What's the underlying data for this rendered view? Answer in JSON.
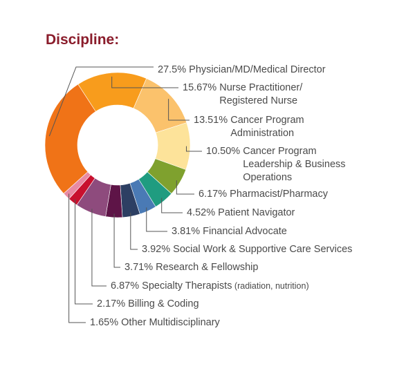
{
  "chart_data": {
    "type": "pie",
    "variant": "donut",
    "title": "Discipline:",
    "title_color": "#8a1c2b",
    "slices": [
      {
        "label": "Physician/MD/Medical Director",
        "percent_text": "27.5%",
        "value": 27.5,
        "color": "#f07317"
      },
      {
        "label": "Nurse Practitioner/\nRegistered Nurse",
        "percent_text": "15.67%",
        "value": 15.67,
        "color": "#f89c1c"
      },
      {
        "label": "Cancer Program\nAdministration",
        "percent_text": "13.51%",
        "value": 13.51,
        "color": "#fbc26c"
      },
      {
        "label": "Cancer Program\nLeadership & Business\nOperations",
        "percent_text": "10.50%",
        "value": 10.5,
        "color": "#fde39a"
      },
      {
        "label": "Pharmacist/Pharmacy",
        "percent_text": "6.17%",
        "value": 6.17,
        "color": "#7fa12e"
      },
      {
        "label": "Patient Navigator",
        "percent_text": "4.52%",
        "value": 4.52,
        "color": "#1f9c80"
      },
      {
        "label": "Financial Advocate",
        "percent_text": "3.81%",
        "value": 3.81,
        "color": "#4a7ab5"
      },
      {
        "label": "Social Work & Supportive Care Services",
        "percent_text": "3.92%",
        "value": 3.92,
        "color": "#2d3f63"
      },
      {
        "label": "Research & Fellowship",
        "percent_text": "3.71%",
        "value": 3.71,
        "color": "#5e1447"
      },
      {
        "label": "Specialty Therapists",
        "label_suffix": "(radiation, nutrition)",
        "percent_text": "6.87%",
        "value": 6.87,
        "color": "#8e4b7d"
      },
      {
        "label": "Billing & Coding",
        "percent_text": "2.17%",
        "value": 2.17,
        "color": "#c8102e"
      },
      {
        "label": "Other Multidisciplinary",
        "percent_text": "1.65%",
        "value": 1.65,
        "color": "#e88aa3"
      }
    ]
  }
}
